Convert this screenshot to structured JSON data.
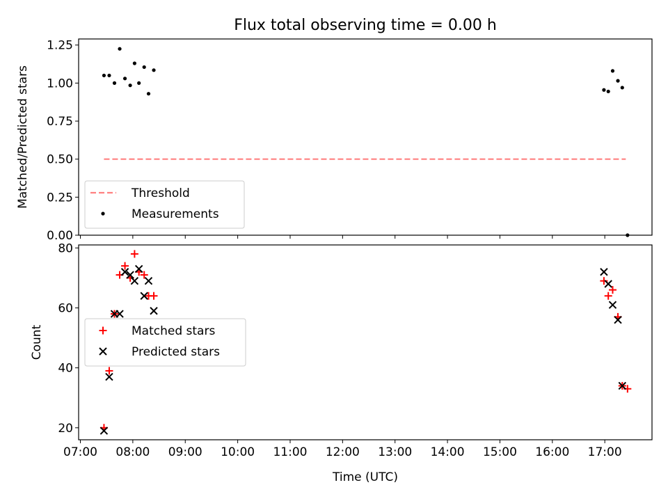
{
  "figure": {
    "title": "Flux total observing time = 0.00 h"
  },
  "chart_data": [
    {
      "type": "scatter",
      "title": "Flux total observing time = 0.00 h",
      "xlabel": "",
      "ylabel": "Matched/Predicted stars",
      "xlim": [
        "06:58",
        "17:54"
      ],
      "ylim": [
        0,
        1.29
      ],
      "yticks": [
        "0.00",
        "0.25",
        "0.50",
        "0.75",
        "1.00",
        "1.25"
      ],
      "grid": false,
      "legend_position": "lower-left",
      "series": [
        {
          "name": "Threshold",
          "kind": "line",
          "style": "dashed",
          "color": "#ff8080",
          "points": [
            {
              "x": "07:27",
              "y": 0.5
            },
            {
              "x": "17:24",
              "y": 0.5
            }
          ]
        },
        {
          "name": "Measurements",
          "kind": "scatter",
          "marker": "dot",
          "color": "#000000",
          "points": [
            {
              "x": "07:27",
              "y": 1.05
            },
            {
              "x": "07:33",
              "y": 1.05
            },
            {
              "x": "07:39",
              "y": 1.0
            },
            {
              "x": "07:45",
              "y": 1.225
            },
            {
              "x": "07:51",
              "y": 1.03
            },
            {
              "x": "07:57",
              "y": 0.985
            },
            {
              "x": "08:02",
              "y": 1.13
            },
            {
              "x": "08:07",
              "y": 1.0
            },
            {
              "x": "08:13",
              "y": 1.105
            },
            {
              "x": "08:18",
              "y": 0.93
            },
            {
              "x": "08:24",
              "y": 1.085
            },
            {
              "x": "16:59",
              "y": 0.955
            },
            {
              "x": "17:04",
              "y": 0.945
            },
            {
              "x": "17:09",
              "y": 1.08
            },
            {
              "x": "17:15",
              "y": 1.015
            },
            {
              "x": "17:20",
              "y": 0.97
            },
            {
              "x": "17:26",
              "y": 0.0
            }
          ]
        }
      ]
    },
    {
      "type": "scatter",
      "title": "",
      "xlabel": "Time (UTC)",
      "ylabel": "Count",
      "xlim": [
        "06:58",
        "17:54"
      ],
      "ylim": [
        16,
        81
      ],
      "yticks": [
        "20",
        "40",
        "60",
        "80"
      ],
      "xticks": [
        "07:00",
        "08:00",
        "09:00",
        "10:00",
        "11:00",
        "12:00",
        "13:00",
        "14:00",
        "15:00",
        "16:00",
        "17:00"
      ],
      "grid": false,
      "legend_position": "center-left",
      "series": [
        {
          "name": "Matched stars",
          "marker": "plus",
          "color": "#ff0000",
          "points": [
            {
              "x": "07:27",
              "y": 20
            },
            {
              "x": "07:33",
              "y": 39
            },
            {
              "x": "07:39",
              "y": 58
            },
            {
              "x": "07:45",
              "y": 71
            },
            {
              "x": "07:51",
              "y": 74
            },
            {
              "x": "07:57",
              "y": 70
            },
            {
              "x": "08:02",
              "y": 78
            },
            {
              "x": "08:07",
              "y": 72
            },
            {
              "x": "08:13",
              "y": 71
            },
            {
              "x": "08:18",
              "y": 64
            },
            {
              "x": "08:24",
              "y": 64
            },
            {
              "x": "16:59",
              "y": 69
            },
            {
              "x": "17:04",
              "y": 64
            },
            {
              "x": "17:09",
              "y": 66
            },
            {
              "x": "17:15",
              "y": 57
            },
            {
              "x": "17:20",
              "y": 34
            },
            {
              "x": "17:26",
              "y": 33
            }
          ]
        },
        {
          "name": "Predicted stars",
          "marker": "x",
          "color": "#000000",
          "points": [
            {
              "x": "07:27",
              "y": 19
            },
            {
              "x": "07:33",
              "y": 37
            },
            {
              "x": "07:39",
              "y": 58
            },
            {
              "x": "07:45",
              "y": 58
            },
            {
              "x": "07:51",
              "y": 72
            },
            {
              "x": "07:57",
              "y": 71
            },
            {
              "x": "08:02",
              "y": 69
            },
            {
              "x": "08:07",
              "y": 73
            },
            {
              "x": "08:13",
              "y": 64
            },
            {
              "x": "08:18",
              "y": 69
            },
            {
              "x": "08:24",
              "y": 59
            },
            {
              "x": "16:59",
              "y": 72
            },
            {
              "x": "17:04",
              "y": 68
            },
            {
              "x": "17:09",
              "y": 61
            },
            {
              "x": "17:15",
              "y": 56
            },
            {
              "x": "17:20",
              "y": 34
            }
          ]
        }
      ]
    }
  ]
}
